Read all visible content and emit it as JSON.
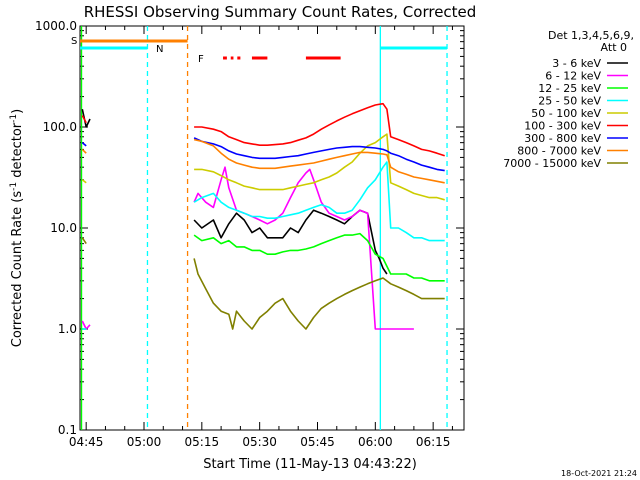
{
  "chart_data": {
    "type": "line",
    "title": "RHESSI Observing Summary Count Rates, Corrected",
    "xlabel": "Start Time (11-May-13 04:43:22)",
    "ylabel_main": "Corrected Count Rate (s",
    "ylabel_sup1": "-1",
    "ylabel_mid": " detector",
    "ylabel_sup2": "-1",
    "ylabel_end": ")",
    "x_start_min": 283.4,
    "xlim_min": [
      283.4,
      383.0
    ],
    "ylim": [
      0.1,
      1000
    ],
    "yscale": "log",
    "y_ticks": [
      {
        "value": 0.1,
        "label": "0.1"
      },
      {
        "value": 1,
        "label": "1.0"
      },
      {
        "value": 10,
        "label": "10.0"
      },
      {
        "value": 100,
        "label": "100.0"
      },
      {
        "value": 1000,
        "label": "1000.0"
      }
    ],
    "x_ticks": [
      {
        "value": 285,
        "label": "04:45"
      },
      {
        "value": 300,
        "label": "05:00"
      },
      {
        "value": 315,
        "label": "05:15"
      },
      {
        "value": 330,
        "label": "05:30"
      },
      {
        "value": 345,
        "label": "05:45"
      },
      {
        "value": 360,
        "label": "06:00"
      },
      {
        "value": 375,
        "label": "06:15"
      }
    ],
    "legend_header_1": "Det 1,3,4,5,6,9,",
    "legend_header_2": "Att 0",
    "series": [
      {
        "name": "3 - 6 keV",
        "color": "#000000",
        "x": [
          284,
          285,
          286,
          313,
          315,
          318,
          320,
          322,
          324,
          326,
          328,
          330,
          332,
          334,
          336,
          338,
          340,
          342,
          344,
          346,
          348,
          350,
          352,
          354,
          356,
          358,
          360,
          361,
          362,
          363
        ],
        "y": [
          150,
          100,
          120,
          12,
          10,
          12,
          8,
          11,
          14,
          12,
          9,
          10,
          8,
          8,
          8,
          10,
          9,
          12,
          15,
          14,
          13,
          12,
          11,
          13,
          15,
          14,
          6,
          5,
          4,
          3.5
        ]
      },
      {
        "name": "6 - 12 keV",
        "color": "#ff00ff",
        "x": [
          284,
          285,
          286,
          313,
          314,
          316,
          318,
          320,
          321,
          322,
          324,
          326,
          328,
          330,
          332,
          334,
          336,
          338,
          340,
          342,
          343,
          344,
          346,
          348,
          350,
          352,
          354,
          356,
          358,
          360,
          362,
          364,
          366,
          368,
          370
        ],
        "y": [
          1.2,
          1.0,
          1.1,
          18,
          22,
          18,
          16,
          30,
          40,
          25,
          15,
          14,
          13,
          12,
          11,
          12,
          14,
          20,
          28,
          35,
          38,
          30,
          18,
          14,
          13,
          12,
          13,
          15,
          14,
          1.0,
          1.0,
          1.0,
          1.0,
          1.0,
          1.0
        ]
      },
      {
        "name": "12 - 25 keV",
        "color": "#00ff00",
        "x": [
          284,
          285,
          313,
          315,
          318,
          320,
          322,
          324,
          326,
          328,
          330,
          332,
          334,
          336,
          338,
          340,
          342,
          344,
          346,
          348,
          350,
          352,
          354,
          356,
          358,
          360,
          362,
          364,
          366,
          368,
          370,
          372,
          374,
          376,
          378
        ],
        "y": [
          1.0,
          1.0,
          8.5,
          7.5,
          8,
          7,
          7.5,
          6.5,
          6.5,
          6,
          6,
          5.5,
          5.5,
          5.8,
          6,
          6,
          6.2,
          6.5,
          7,
          7.5,
          8,
          8.5,
          8.5,
          8.8,
          7.5,
          5.5,
          5,
          3.5,
          3.5,
          3.5,
          3.2,
          3.2,
          3.0,
          3.0,
          3.0
        ]
      },
      {
        "name": "25 - 50 keV",
        "color": "#00ffff",
        "x": [
          284,
          285,
          313,
          315,
          318,
          320,
          322,
          324,
          326,
          328,
          330,
          332,
          334,
          336,
          338,
          340,
          342,
          344,
          346,
          348,
          350,
          352,
          354,
          356,
          358,
          360,
          362,
          363,
          364,
          366,
          368,
          370,
          372,
          374,
          376,
          378
        ],
        "y": [
          1.0,
          1.0,
          18,
          20,
          22,
          18,
          16,
          15,
          14,
          13,
          13,
          12.5,
          12.5,
          13,
          13.5,
          14,
          15,
          16,
          17,
          16,
          14,
          14,
          15,
          19,
          25,
          30,
          40,
          45,
          10,
          10,
          9,
          8,
          8,
          7.5,
          7.5,
          7.5
        ]
      },
      {
        "name": "50 - 100 keV",
        "color": "#cccc00",
        "x": [
          284,
          285,
          313,
          315,
          318,
          320,
          322,
          324,
          326,
          328,
          330,
          332,
          334,
          336,
          338,
          340,
          342,
          344,
          346,
          348,
          350,
          352,
          354,
          356,
          358,
          360,
          362,
          363,
          364,
          366,
          368,
          370,
          372,
          374,
          376,
          378
        ],
        "y": [
          30,
          28,
          38,
          38,
          36,
          33,
          30,
          28,
          26,
          25,
          24,
          24,
          24,
          24,
          25,
          26,
          27,
          28,
          30,
          32,
          35,
          40,
          45,
          55,
          65,
          70,
          80,
          85,
          28,
          26,
          24,
          22,
          21,
          20,
          20,
          19
        ]
      },
      {
        "name": "100 - 300 keV",
        "color": "#ff0000",
        "x": [
          284,
          285,
          313,
          315,
          318,
          320,
          322,
          324,
          326,
          328,
          330,
          332,
          334,
          336,
          338,
          340,
          342,
          344,
          346,
          348,
          350,
          352,
          354,
          356,
          358,
          360,
          362,
          363,
          364,
          366,
          368,
          370,
          372,
          374,
          376,
          378
        ],
        "y": [
          130,
          110,
          100,
          100,
          95,
          90,
          80,
          75,
          70,
          68,
          66,
          66,
          67,
          68,
          70,
          74,
          78,
          85,
          95,
          105,
          115,
          125,
          135,
          145,
          155,
          165,
          170,
          150,
          80,
          75,
          70,
          65,
          60,
          58,
          55,
          52
        ]
      },
      {
        "name": "300 - 800 keV",
        "color": "#0000ff",
        "x": [
          284,
          285,
          313,
          315,
          318,
          320,
          322,
          324,
          326,
          328,
          330,
          332,
          334,
          336,
          338,
          340,
          342,
          344,
          346,
          348,
          350,
          352,
          354,
          356,
          358,
          360,
          362,
          363,
          364,
          366,
          368,
          370,
          372,
          374,
          376,
          378
        ],
        "y": [
          70,
          65,
          78,
          72,
          68,
          64,
          58,
          54,
          52,
          50,
          49,
          49,
          49,
          50,
          51,
          52,
          54,
          56,
          58,
          60,
          62,
          63,
          64,
          64,
          63,
          62,
          60,
          58,
          55,
          52,
          48,
          45,
          42,
          40,
          38,
          37
        ]
      },
      {
        "name": "800 - 7000 keV",
        "color": "#ff8000",
        "x": [
          284,
          285,
          313,
          315,
          318,
          320,
          322,
          324,
          326,
          328,
          330,
          332,
          334,
          336,
          338,
          340,
          342,
          344,
          346,
          348,
          350,
          352,
          354,
          356,
          358,
          360,
          362,
          363,
          364,
          366,
          368,
          370,
          372,
          374,
          376,
          378
        ],
        "y": [
          60,
          55,
          75,
          72,
          65,
          55,
          48,
          44,
          42,
          40,
          39,
          39,
          39,
          40,
          41,
          42,
          43,
          44,
          46,
          48,
          50,
          52,
          54,
          56,
          56,
          55,
          54,
          53,
          40,
          36,
          34,
          32,
          31,
          30,
          29,
          28
        ]
      },
      {
        "name": "7000 - 15000 keV",
        "color": "#808000",
        "x": [
          284,
          285,
          313,
          314,
          316,
          318,
          320,
          322,
          323,
          324,
          326,
          328,
          330,
          332,
          334,
          336,
          338,
          340,
          342,
          344,
          346,
          348,
          350,
          352,
          354,
          356,
          358,
          360,
          362,
          364,
          366,
          368,
          370,
          372,
          374,
          376,
          378
        ],
        "y": [
          8,
          7,
          5,
          3.5,
          2.5,
          1.8,
          1.5,
          1.4,
          1.0,
          1.5,
          1.2,
          1.0,
          1.3,
          1.5,
          1.8,
          2.0,
          1.5,
          1.2,
          1.0,
          1.3,
          1.6,
          1.8,
          2.0,
          2.2,
          2.4,
          2.6,
          2.8,
          3.0,
          3.2,
          2.8,
          2.6,
          2.4,
          2.2,
          2.0,
          2.0,
          2.0,
          2.0
        ]
      }
    ],
    "markers": [
      {
        "label": "S",
        "color": "#ff8000"
      },
      {
        "label": "N",
        "color": "#00ffff"
      },
      {
        "label": "F",
        "color": "#ff0000"
      }
    ],
    "vlines": [
      {
        "x": 300.9,
        "color": "#00ffff",
        "style": "dashed"
      },
      {
        "x": 311.3,
        "color": "#ff8000",
        "style": "dashed"
      },
      {
        "x": 361.3,
        "color": "#00ffff",
        "style": "solid"
      },
      {
        "x": 378.6,
        "color": "#00ffff",
        "style": "dashed"
      },
      {
        "x": 283.8,
        "color": "#00ff00",
        "style": "solid"
      }
    ],
    "flag_bars": [
      {
        "color": "#ff8000",
        "x0": 283.4,
        "x1": 311.3,
        "level": 1
      },
      {
        "color": "#00ffff",
        "x0": 283.4,
        "x1": 300.9,
        "level": 2
      },
      {
        "color": "#00ffff",
        "x0": 361.3,
        "x1": 378.6,
        "level": 2
      },
      {
        "color": "#ff0000",
        "x0": 320.5,
        "x1": 321.5,
        "level": 3
      },
      {
        "color": "#ff0000",
        "x0": 322.5,
        "x1": 323.2,
        "level": 3
      },
      {
        "color": "#ff0000",
        "x0": 324.2,
        "x1": 325.0,
        "level": 3
      },
      {
        "color": "#ff0000",
        "x0": 328.0,
        "x1": 332.0,
        "level": 3
      },
      {
        "color": "#ff0000",
        "x0": 342.0,
        "x1": 351.0,
        "level": 3
      }
    ]
  },
  "footer_timestamp": "18-Oct-2021 21:24"
}
